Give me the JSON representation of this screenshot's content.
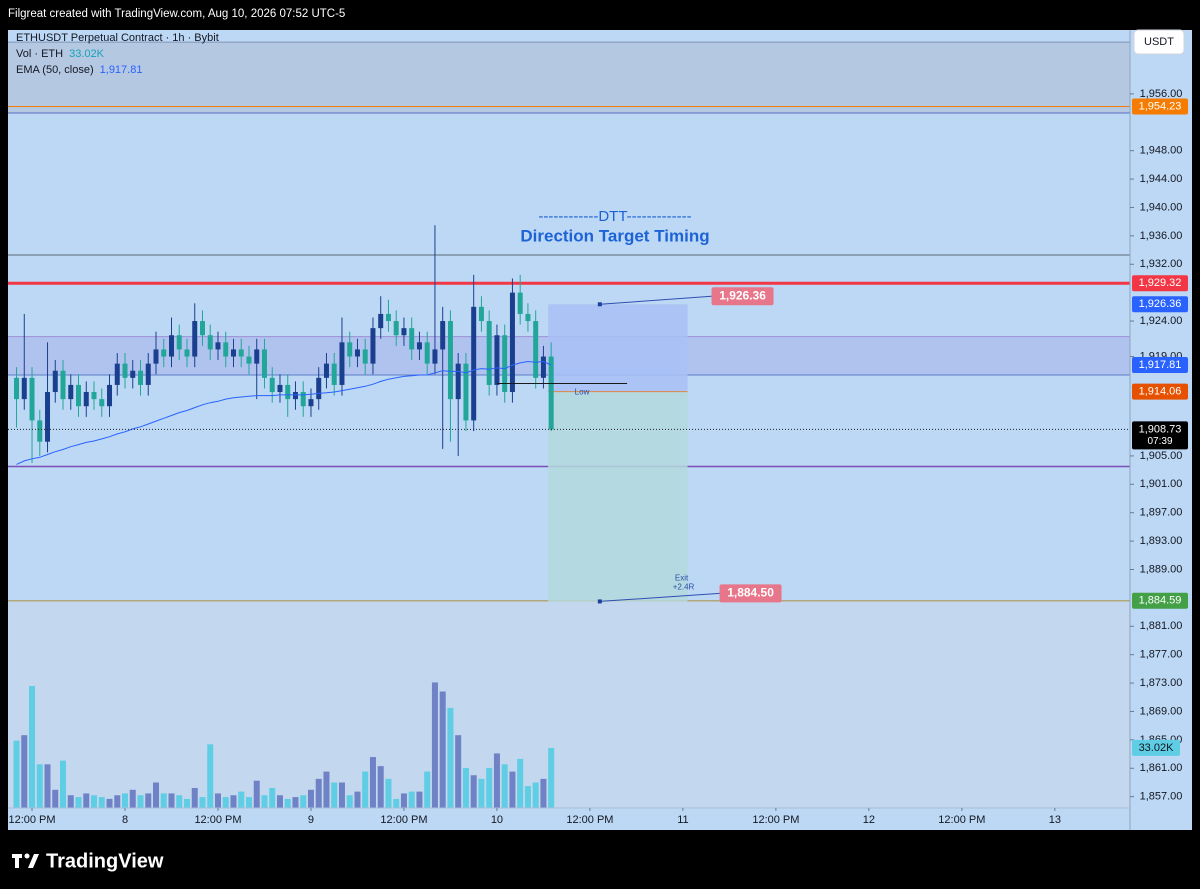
{
  "chart_data": {
    "type": "candlestick",
    "header": "Filgreat created with TradingView.com, Aug 10, 2026 07:52 UTC-5",
    "symbol": "ETHUSDT Perpetual Contract · 1h · Bybit",
    "vol_legend": "Vol · ETH",
    "vol_value_label": "33.02K",
    "ema_legend": "EMA (50, close)",
    "ema_value_label": "1,917.81",
    "currency": "USDT",
    "annotation": [
      "------------DTT-------------",
      "Direction Target Timing"
    ],
    "brand": "TradingView",
    "countdown": "07:39",
    "colors": {
      "up": "#1b3f8f",
      "down": "#22a69a"
    },
    "open": [
      1916,
      1913,
      1916,
      1910,
      1907,
      1914,
      1917,
      1913,
      1915,
      1912,
      1914,
      1913,
      1912,
      1915,
      1918,
      1916,
      1917,
      1915,
      1918,
      1920,
      1919,
      1922,
      1920,
      1919,
      1924,
      1922,
      1920,
      1921,
      1919,
      1920,
      1919,
      1918,
      1920,
      1916,
      1914,
      1915,
      1913,
      1914,
      1912,
      1913,
      1916,
      1918,
      1915,
      1921,
      1919,
      1920,
      1918,
      1923,
      1925,
      1924,
      1922,
      1923,
      1920,
      1921,
      1918,
      1920,
      1924,
      1913,
      1918,
      1910,
      1926,
      1924,
      1915,
      1922,
      1914,
      1928,
      1925,
      1924,
      1916,
      1919
    ],
    "high": [
      1917.5,
      1925,
      1917.5,
      1911.5,
      1921,
      1918.5,
      1918.5,
      1916.5,
      1916.5,
      1915.5,
      1915.5,
      1914.5,
      1916.5,
      1919.5,
      1919.5,
      1918.5,
      1918.5,
      1919.5,
      1922.5,
      1921.5,
      1924.5,
      1923.5,
      1921.5,
      1926.5,
      1925.5,
      1923.5,
      1922.5,
      1922.5,
      1921.5,
      1921.5,
      1920.5,
      1921.5,
      1921.5,
      1917.5,
      1916.5,
      1916.5,
      1915.5,
      1915.5,
      1914.5,
      1917.5,
      1919.5,
      1919.5,
      1924.5,
      1922.5,
      1921.5,
      1921.5,
      1924.5,
      1927.5,
      1927,
      1925.5,
      1924.5,
      1924.5,
      1922.5,
      1922.5,
      1937.5,
      1926,
      1925.5,
      1919.5,
      1919.5,
      1930.5,
      1927.5,
      1925.5,
      1923.5,
      1923.5,
      1930,
      1930.5,
      1926.5,
      1925.5,
      1920.5,
      1921
    ],
    "low": [
      1909,
      1911.5,
      1904,
      1905,
      1905.5,
      1912.5,
      1911.5,
      1911.5,
      1910.5,
      1910.5,
      1911.5,
      1910.5,
      1910.5,
      1913.5,
      1914.5,
      1914.5,
      1913.5,
      1913.5,
      1916.5,
      1917.5,
      1917.5,
      1918.5,
      1917.5,
      1917.5,
      1920.5,
      1918.5,
      1918.5,
      1917.5,
      1917.5,
      1917.5,
      1916.5,
      1913,
      1914.5,
      1912.5,
      1912.5,
      1910.5,
      1911.5,
      1910.5,
      1910.5,
      1911.5,
      1914.5,
      1913.5,
      1913.5,
      1917.5,
      1917.5,
      1916.5,
      1916.5,
      1921.5,
      1922.5,
      1920.5,
      1920.5,
      1918.5,
      1918.5,
      1916.5,
      1916.5,
      1906,
      1907,
      1905,
      1908.5,
      1908.5,
      1922.5,
      1913.5,
      1913.5,
      1912.5,
      1912.5,
      1923.5,
      1922.5,
      1914.5,
      1914.5,
      1908.5
    ],
    "close": [
      1913,
      1916,
      1910,
      1907,
      1914,
      1917,
      1913,
      1915,
      1912,
      1914,
      1913,
      1912,
      1915,
      1918,
      1916,
      1917,
      1915,
      1918,
      1920,
      1919,
      1922,
      1920,
      1919,
      1924,
      1922,
      1920,
      1921,
      1919,
      1920,
      1919,
      1918,
      1920,
      1916,
      1914,
      1915,
      1913,
      1914,
      1912,
      1913,
      1916,
      1918,
      1915,
      1921,
      1919,
      1920,
      1918,
      1923,
      1925,
      1924,
      1922,
      1923,
      1920,
      1921,
      1918,
      1920,
      1924,
      1913,
      1918,
      1910,
      1926,
      1924,
      1915,
      1922,
      1914,
      1928,
      1925,
      1924,
      1916,
      1919,
      1908.73
    ],
    "volume": {
      "values": [
        37,
        40,
        67,
        24,
        24,
        10,
        26,
        7,
        6,
        8,
        7,
        6,
        5,
        7,
        8,
        10,
        7,
        8,
        14,
        8,
        8,
        7,
        5,
        11,
        6,
        35,
        8,
        6,
        7,
        9,
        6,
        15,
        7,
        11,
        7,
        5,
        6,
        7,
        10,
        16,
        20,
        14,
        14,
        7,
        9,
        20,
        28,
        23,
        16,
        5,
        8,
        9,
        9,
        20,
        69,
        64,
        55,
        40,
        22,
        18,
        16,
        22,
        30,
        24,
        20,
        27,
        12,
        14,
        16,
        33.02
      ],
      "up_color": "#6f82c6",
      "down_color": "#5fcde3"
    },
    "ema": {
      "values": [
        1903.8,
        1904.3,
        1904.6,
        1904.8,
        1905.2,
        1905.6,
        1905.9,
        1906.3,
        1906.6,
        1906.9,
        1907.1,
        1907.4,
        1907.7,
        1908.1,
        1908.4,
        1908.8,
        1909.1,
        1909.5,
        1909.9,
        1910.3,
        1910.7,
        1911.1,
        1911.4,
        1911.8,
        1912.2,
        1912.5,
        1912.7,
        1913.0,
        1913.2,
        1913.3,
        1913.4,
        1913.5,
        1913.5,
        1913.5,
        1913.6,
        1913.6,
        1913.6,
        1913.6,
        1913.7,
        1913.8,
        1913.9,
        1914.0,
        1914.2,
        1914.4,
        1914.6,
        1914.8,
        1915.1,
        1915.5,
        1915.8,
        1916.0,
        1916.2,
        1916.3,
        1916.4,
        1916.4,
        1916.7,
        1917.0,
        1916.9,
        1916.9,
        1916.7,
        1917.1,
        1917.3,
        1917.2,
        1917.4,
        1917.3,
        1917.8,
        1918.1,
        1918.3,
        1918.2,
        1918.3,
        1917.81
      ],
      "color": "#2962ff"
    },
    "ylim": [
      1855.4,
      1965
    ],
    "yticks": [
      {
        "value": 1956,
        "label": "1,956.00"
      },
      {
        "value": 1948,
        "label": "1,948.00"
      },
      {
        "value": 1944,
        "label": "1,944.00"
      },
      {
        "value": 1940,
        "label": "1,940.00"
      },
      {
        "value": 1936,
        "label": "1,936.00"
      },
      {
        "value": 1932,
        "label": "1,932.00"
      },
      {
        "value": 1924,
        "label": "1,924.00"
      },
      {
        "value": 1919,
        "label": "1,919.00"
      },
      {
        "value": 1905,
        "label": "1,905.00"
      },
      {
        "value": 1901,
        "label": "1,901.00"
      },
      {
        "value": 1897,
        "label": "1,897.00"
      },
      {
        "value": 1893,
        "label": "1,893.00"
      },
      {
        "value": 1889,
        "label": "1,889.00"
      },
      {
        "value": 1881,
        "label": "1,881.00"
      },
      {
        "value": 1877,
        "label": "1,877.00"
      },
      {
        "value": 1873,
        "label": "1,873.00"
      },
      {
        "value": 1869,
        "label": "1,869.00"
      },
      {
        "value": 1865,
        "label": "1,865.00"
      },
      {
        "value": 1861,
        "label": "1,861.00"
      },
      {
        "value": 1857,
        "label": "1,857.00"
      }
    ],
    "xlim": [
      -1.1,
      143.7
    ],
    "xticks": [
      {
        "value": 2,
        "label": "12:00 PM"
      },
      {
        "value": 14,
        "label": "8"
      },
      {
        "value": 26,
        "label": "12:00 PM"
      },
      {
        "value": 38,
        "label": "9"
      },
      {
        "value": 50,
        "label": "12:00 PM"
      },
      {
        "value": 62,
        "label": "10"
      },
      {
        "value": 74,
        "label": "12:00 PM"
      },
      {
        "value": 86,
        "label": "11"
      },
      {
        "value": 98,
        "label": "12:00 PM"
      },
      {
        "value": 110,
        "label": "12"
      },
      {
        "value": 122,
        "label": "12:00 PM"
      },
      {
        "value": 134,
        "label": "13"
      }
    ],
    "zones": [
      {
        "from": 1953.3,
        "to": 1963.3,
        "color": "#b5c8e2"
      },
      {
        "from": 1916.4,
        "to": 1921.8,
        "color": "#b0c3ef"
      },
      {
        "from": 1855.4,
        "to": 1884.59,
        "color": "#c3d7ee"
      }
    ],
    "levels": [
      {
        "value": 1963.3,
        "color": "#7f93b5",
        "width": 1
      },
      {
        "value": 1954.23,
        "color": "#f57c00",
        "width": 1
      },
      {
        "value": 1953.3,
        "color": "#5c6bc0",
        "width": 1
      },
      {
        "value": 1933.3,
        "color": "#5d6778",
        "width": 1
      },
      {
        "value": 1929.32,
        "color": "#f23645",
        "width": 3
      },
      {
        "value": 1921.8,
        "color": "#9c8fd6",
        "width": 1
      },
      {
        "value": 1916.4,
        "color": "#5c7cc8",
        "width": 1
      },
      {
        "value": 1903.5,
        "color": "#7b4fb8",
        "width": 1.5
      },
      {
        "value": 1884.59,
        "color": "#b0a878",
        "width": 1.5
      }
    ],
    "price_labels": [
      {
        "value": 1954.23,
        "label": "1,954.23",
        "color": "#f57c00"
      },
      {
        "value": 1929.32,
        "label": "1,929.32",
        "color": "#f23645"
      },
      {
        "value": 1926.36,
        "label": "1,926.36",
        "color": "#2962ff"
      },
      {
        "value": 1917.81,
        "label": "1,917.81",
        "color": "#2962ff"
      },
      {
        "value": 1914.06,
        "label": "1,914.06",
        "color": "#e65100"
      },
      {
        "value": 1908.73,
        "label": "1,908.73",
        "color": "#000000"
      },
      {
        "value": 1884.59,
        "label": "1,884.59",
        "color": "#43a047"
      }
    ],
    "position": {
      "entry": 1914.06,
      "stop": 1926.36,
      "target": 1884.5,
      "start": 68.6,
      "end": 86.6,
      "stop_label": "1,926.36",
      "target_label": "1,884.50",
      "exit_label": "Exit",
      "r_label": "+2.4R",
      "stop_color": "#a8c1f4",
      "target_color": "#b4d9dc",
      "tag_color": "#e8768a"
    },
    "low_line": {
      "value": 1915.2,
      "from": 62,
      "to": 78.8,
      "label": "Low"
    }
  }
}
